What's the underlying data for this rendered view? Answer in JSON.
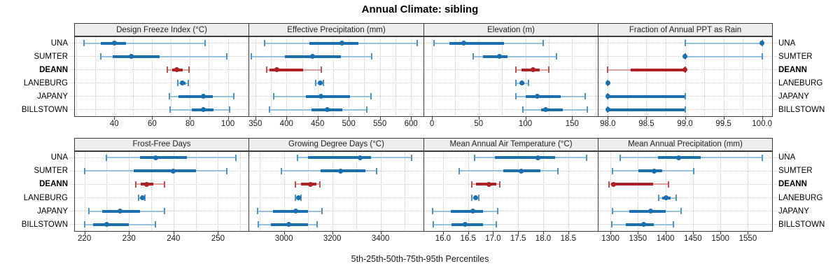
{
  "title": "Annual Climate: sibling",
  "caption": "5th-25th-50th-75th-95th Percentiles",
  "stations": [
    "UNA",
    "SUMTER",
    "DEANN",
    "LANEBURG",
    "JAPANY",
    "BILLSTOWN"
  ],
  "highlight_station": "DEANN",
  "colors": {
    "blue": "#1b6fae",
    "blue_light": "#97c2dd",
    "blue_cap": "#4f96c6",
    "red": "#ad2024",
    "red_light": "#dca49e",
    "red_cap": "#c4524e",
    "grid": "#c9c9c9",
    "strip_bg": "#ededed",
    "border": "#3c3c3c"
  },
  "chart_data": {
    "type": "dot-range-plot",
    "percentiles_shown": [
      5,
      25,
      50,
      75,
      95
    ],
    "legend_position": "none",
    "grid": "dotted",
    "panels": [
      {
        "title": "Design Freeze Index (°C)",
        "row": 0,
        "col": 0,
        "xlim": [
          18.8,
          110.9
        ],
        "tick_labels": [
          "40",
          "60",
          "80",
          "100"
        ],
        "tick_values": [
          40,
          60,
          80,
          100
        ],
        "grid_values": [
          20,
          30,
          40,
          50,
          60,
          70,
          80,
          90,
          100,
          110
        ],
        "series": [
          {
            "name": "UNA",
            "p": [
              24,
              33,
              40,
              46,
              88
            ]
          },
          {
            "name": "SUMTER",
            "p": [
              33,
              39,
              49,
              64,
              99.5
            ]
          },
          {
            "name": "DEANN",
            "p": [
              68,
              70.5,
              73,
              76,
              79.5
            ]
          },
          {
            "name": "LANEBURG",
            "p": [
              73.5,
              75,
              76,
              77.5,
              79
            ]
          },
          {
            "name": "JAPANY",
            "p": [
              69,
              74,
              87,
              92,
              103
            ]
          },
          {
            "name": "BILLSTOWN",
            "p": [
              69.5,
              81,
              87,
              92.5,
              101
            ]
          }
        ]
      },
      {
        "title": "Effective Precipitation (mm)",
        "row": 0,
        "col": 1,
        "xlim": [
          339,
          620
        ],
        "tick_labels": [
          "350",
          "400",
          "450",
          "500",
          "550",
          "600"
        ],
        "tick_values": [
          350,
          400,
          450,
          500,
          550,
          600
        ],
        "grid_values": [
          350,
          375,
          400,
          425,
          450,
          475,
          500,
          525,
          550,
          575,
          600
        ],
        "series": [
          {
            "name": "UNA",
            "p": [
              365,
              437,
              489,
              515,
              610
            ]
          },
          {
            "name": "SUMTER",
            "p": [
              344,
              398,
              442,
              487,
              537
            ]
          },
          {
            "name": "DEANN",
            "p": [
              368,
              373,
              385,
              427,
              456
            ]
          },
          {
            "name": "LANEBURG",
            "p": [
              447,
              451,
              454,
              456.5,
              459
            ]
          },
          {
            "name": "JAPANY",
            "p": [
              379,
              431,
              455,
              502,
              536
            ]
          },
          {
            "name": "BILLSTOWN",
            "p": [
              373,
              440,
              465,
              490,
              529
            ]
          }
        ]
      },
      {
        "title": "Elevation (m)",
        "row": 0,
        "col": 2,
        "xlim": [
          -9,
          177.5
        ],
        "tick_labels": [
          "0",
          "50",
          "100",
          "150"
        ],
        "tick_values": [
          0,
          50,
          100,
          150
        ],
        "grid_values": [
          0,
          25,
          50,
          75,
          100,
          125,
          150,
          175
        ],
        "series": [
          {
            "name": "UNA",
            "p": [
              2,
              19,
              34,
              77,
              119
            ]
          },
          {
            "name": "SUMTER",
            "p": [
              44,
              55,
              72,
              81,
              133
            ]
          },
          {
            "name": "DEANN",
            "p": [
              90,
              96,
              108,
              115,
              125
            ]
          },
          {
            "name": "LANEBURG",
            "p": [
              90,
              94,
              96.5,
              99,
              103
            ]
          },
          {
            "name": "JAPANY",
            "p": [
              90,
              100,
              113,
              138,
              164
            ]
          },
          {
            "name": "BILLSTOWN",
            "p": [
              97,
              117,
              121.5,
              140,
              166
            ]
          }
        ]
      },
      {
        "title": "Fraction of Annual PPT as Rain",
        "row": 0,
        "col": 3,
        "xlim": [
          97.87,
          100.13
        ],
        "tick_labels": [
          "98.0",
          "98.5",
          "99.0",
          "99.5",
          "100.0"
        ],
        "tick_values": [
          98.0,
          98.5,
          99.0,
          99.5,
          100.0
        ],
        "grid_values": [
          98.0,
          98.25,
          98.5,
          98.75,
          99.0,
          99.25,
          99.5,
          99.75,
          100.0
        ],
        "series": [
          {
            "name": "UNA",
            "p": [
              99,
              100,
              100,
              100,
              100
            ]
          },
          {
            "name": "SUMTER",
            "p": [
              99,
              99,
              99,
              99,
              100
            ]
          },
          {
            "name": "DEANN",
            "p": [
              98,
              98.3,
              99,
              99,
              99
            ]
          },
          {
            "name": "LANEBURG",
            "p": [
              98,
              98,
              98,
              98,
              98
            ]
          },
          {
            "name": "JAPANY",
            "p": [
              98,
              98,
              98,
              99,
              99
            ]
          },
          {
            "name": "BILLSTOWN",
            "p": [
              98,
              98,
              98,
              99,
              99
            ]
          }
        ]
      },
      {
        "title": "Frost-Free Days",
        "row": 1,
        "col": 0,
        "xlim": [
          217.7,
          256.85
        ],
        "tick_labels": [
          "220",
          "230",
          "240",
          "250"
        ],
        "tick_values": [
          220,
          230,
          240,
          250
        ],
        "grid_values": [
          220,
          225,
          230,
          235,
          240,
          245,
          250,
          255
        ],
        "series": [
          {
            "name": "UNA",
            "p": [
              225,
              232.5,
              236,
              243,
              254
            ]
          },
          {
            "name": "SUMTER",
            "p": [
              220,
              231,
              240,
              245,
              252
            ]
          },
          {
            "name": "DEANN",
            "p": [
              231.5,
              232.7,
              234,
              235.5,
              238
            ]
          },
          {
            "name": "LANEBURG",
            "p": [
              232.2,
              232.7,
              233,
              233.3,
              233.6
            ]
          },
          {
            "name": "JAPANY",
            "p": [
              221,
              224,
              228,
              232.5,
              238
            ]
          },
          {
            "name": "BILLSTOWN",
            "p": [
              220,
              222,
              225,
              230,
              236
            ]
          }
        ]
      },
      {
        "title": "Growing Degree Days (°C)",
        "row": 1,
        "col": 1,
        "xlim": [
          2853,
          3578
        ],
        "tick_labels": [
          "3000",
          "3200",
          "3400"
        ],
        "tick_values": [
          3000,
          3200,
          3400
        ],
        "grid_values": [
          2900,
          3000,
          3100,
          3200,
          3300,
          3400,
          3500
        ],
        "series": [
          {
            "name": "UNA",
            "p": [
              3056,
              3100,
              3316,
              3360,
              3530
            ]
          },
          {
            "name": "SUMTER",
            "p": [
              2988,
              3153,
              3235,
              3337,
              3384
            ]
          },
          {
            "name": "DEANN",
            "p": [
              3046,
              3071,
              3109,
              3134,
              3150
            ]
          },
          {
            "name": "LANEBURG",
            "p": [
              3046,
              3053,
              3059,
              3065,
              3071
            ]
          },
          {
            "name": "JAPANY",
            "p": [
              2892,
              2955,
              3050,
              3100,
              3158
            ]
          },
          {
            "name": "BILLSTOWN",
            "p": [
              2893,
              2945,
              3019,
              3100,
              3138
            ]
          }
        ]
      },
      {
        "title": "Mean Annual Air Temperature (°C)",
        "row": 1,
        "col": 2,
        "xlim": [
          15.61,
          19.09
        ],
        "tick_labels": [
          "16.0",
          "16.5",
          "17.0",
          "17.5",
          "18.0",
          "18.5"
        ],
        "tick_values": [
          16.0,
          16.5,
          17.0,
          17.5,
          18.0,
          18.5
        ],
        "grid_values": [
          16.0,
          16.5,
          17.0,
          17.5,
          18.0,
          18.5
        ],
        "series": [
          {
            "name": "UNA",
            "p": [
              16.63,
              17.03,
              17.89,
              18.24,
              18.87
            ]
          },
          {
            "name": "SUMTER",
            "p": [
              16.32,
              17.2,
              17.56,
              17.94,
              18.3
            ]
          },
          {
            "name": "DEANN",
            "p": [
              16.58,
              16.66,
              16.92,
              17.06,
              17.13
            ]
          },
          {
            "name": "LANEBURG",
            "p": [
              16.57,
              16.61,
              16.65,
              16.69,
              16.72
            ]
          },
          {
            "name": "JAPANY",
            "p": [
              15.79,
              16.15,
              16.6,
              16.8,
              17.09
            ]
          },
          {
            "name": "BILLSTOWN",
            "p": [
              15.81,
              16.17,
              16.44,
              16.8,
              17.07
            ]
          }
        ]
      },
      {
        "title": "Mean Annual Precipitation (mm)",
        "row": 1,
        "col": 3,
        "xlim": [
          1277,
          1594
        ],
        "tick_labels": [
          "1300",
          "1350",
          "1400",
          "1450",
          "1500",
          "1550"
        ],
        "tick_values": [
          1300,
          1350,
          1400,
          1450,
          1500,
          1550
        ],
        "grid_values": [
          1300,
          1350,
          1400,
          1450,
          1500,
          1550
        ],
        "series": [
          {
            "name": "UNA",
            "p": [
              1318,
              1387,
              1424,
              1464,
              1576
            ]
          },
          {
            "name": "SUMTER",
            "p": [
              1304,
              1351,
              1379,
              1394,
              1452
            ]
          },
          {
            "name": "DEANN",
            "p": [
              1298,
              1301,
              1306,
              1377,
              1406
            ]
          },
          {
            "name": "LANEBURG",
            "p": [
              1388,
              1394,
              1401,
              1410,
              1419
            ]
          },
          {
            "name": "JAPANY",
            "p": [
              1304,
              1334,
              1373,
              1400,
              1428
            ]
          },
          {
            "name": "BILLSTOWN",
            "p": [
              1303,
              1328,
              1361,
              1379,
              1414
            ]
          }
        ]
      }
    ]
  }
}
